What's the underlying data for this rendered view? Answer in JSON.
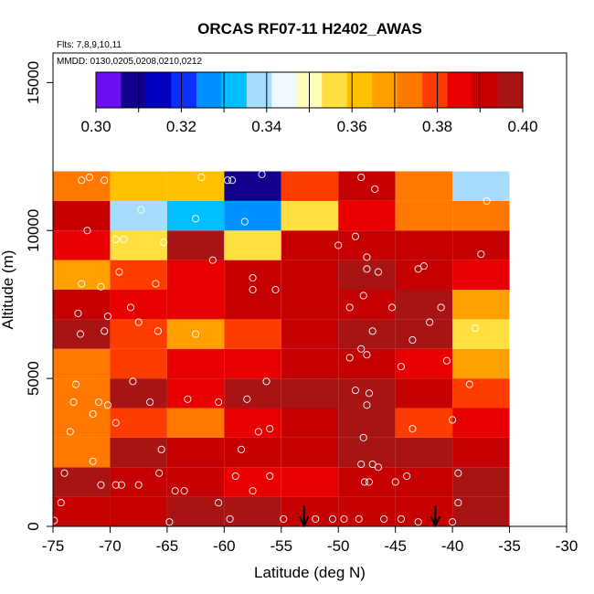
{
  "chart_data": {
    "type": "heatmap",
    "title": "ORCAS RF07-11 H2402_AWAS",
    "subtitle_flights": "Flts: 7,8,9,10,11",
    "subtitle_dates": "MMDD: 0130,0205,0208,0210,0212",
    "xlabel": "Latitude (deg N)",
    "ylabel": "Altitude (m)",
    "xlim": [
      -75,
      -30
    ],
    "ylim": [
      0,
      16000
    ],
    "x_ticks": [
      -75,
      -70,
      -65,
      -60,
      -55,
      -50,
      -45,
      -40,
      -35,
      -30
    ],
    "y_ticks": [
      0,
      5000,
      10000,
      15000
    ],
    "colorbar": {
      "min": 0.3,
      "max": 0.4,
      "ticks": [
        "0.30",
        "0.32",
        "0.34",
        "0.36",
        "0.38",
        "0.40"
      ],
      "colors": [
        "#6a10f0",
        "#10008c",
        "#0000c0",
        "#0a30ff",
        "#0090ff",
        "#00beff",
        "#a8dcff",
        "#f0f8ff",
        "#ffffb8",
        "#ffe040",
        "#ffc000",
        "#ffa000",
        "#ff7800",
        "#ff3c00",
        "#e80000",
        "#c40000",
        "#a81414"
      ]
    },
    "lat_bins": [
      [
        -75,
        -70
      ],
      [
        -70,
        -65
      ],
      [
        -65,
        -60
      ],
      [
        -60,
        -55
      ],
      [
        -55,
        -50
      ],
      [
        -50,
        -45
      ],
      [
        -45,
        -40
      ],
      [
        -40,
        -35
      ]
    ],
    "alt_bins": [
      [
        0,
        1000
      ],
      [
        1000,
        2000
      ],
      [
        2000,
        3000
      ],
      [
        3000,
        4000
      ],
      [
        4000,
        5000
      ],
      [
        5000,
        6000
      ],
      [
        6000,
        7000
      ],
      [
        7000,
        8000
      ],
      [
        8000,
        9000
      ],
      [
        9000,
        10000
      ],
      [
        10000,
        11000
      ],
      [
        11000,
        12000
      ]
    ],
    "cell_values": [
      [
        0.39,
        0.392,
        0.398,
        0.395,
        0.394,
        0.39,
        0.391,
        0.398
      ],
      [
        0.396,
        0.391,
        0.391,
        0.386,
        0.388,
        0.391,
        0.391,
        0.397
      ],
      [
        0.373,
        0.398,
        0.39,
        0.39,
        0.394,
        0.397,
        0.396,
        0.392
      ],
      [
        0.373,
        0.378,
        0.376,
        0.384,
        0.39,
        0.397,
        0.377,
        0.388
      ],
      [
        0.373,
        0.398,
        0.386,
        0.396,
        0.397,
        0.398,
        0.39,
        0.38
      ],
      [
        0.373,
        0.38,
        0.384,
        0.384,
        0.393,
        0.39,
        0.388,
        0.369
      ],
      [
        0.396,
        0.378,
        0.369,
        0.382,
        0.394,
        0.397,
        0.396,
        0.354
      ],
      [
        0.392,
        0.384,
        0.386,
        0.392,
        0.391,
        0.39,
        0.397,
        0.369
      ],
      [
        0.369,
        0.378,
        0.383,
        0.389,
        0.389,
        0.396,
        0.39,
        0.383
      ],
      [
        0.384,
        0.354,
        0.398,
        0.354,
        0.39,
        0.39,
        0.391,
        0.39
      ],
      [
        0.39,
        0.337,
        0.334,
        0.326,
        0.354,
        0.388,
        0.374,
        0.371
      ],
      [
        0.373,
        0.362,
        0.359,
        0.307,
        0.382,
        0.39,
        0.375,
        0.341
      ]
    ],
    "sample_points": [
      [
        -74.9,
        200
      ],
      [
        -74.3,
        800
      ],
      [
        -74,
        1800
      ],
      [
        -73.5,
        3200
      ],
      [
        -73.2,
        4200
      ],
      [
        -73,
        4800
      ],
      [
        -72.6,
        6500
      ],
      [
        -72.8,
        7200
      ],
      [
        -72.5,
        8200
      ],
      [
        -72,
        10000
      ],
      [
        -71.8,
        11800
      ],
      [
        -72.5,
        11700
      ],
      [
        -71.5,
        3800
      ],
      [
        -71,
        4200
      ],
      [
        -70.2,
        4100
      ],
      [
        -70.8,
        1400
      ],
      [
        -71.5,
        2200
      ],
      [
        -70.5,
        6600
      ],
      [
        -70.2,
        7100
      ],
      [
        -70.8,
        8100
      ],
      [
        -70.5,
        11700
      ],
      [
        -69.5,
        1400
      ],
      [
        -69,
        1400
      ],
      [
        -67.5,
        1400
      ],
      [
        -69.5,
        3500
      ],
      [
        -68,
        4900
      ],
      [
        -67.5,
        6900
      ],
      [
        -68.2,
        7400
      ],
      [
        -69.2,
        8600
      ],
      [
        -69.5,
        9700
      ],
      [
        -68.8,
        9700
      ],
      [
        -67.3,
        10700
      ],
      [
        -66.5,
        4200
      ],
      [
        -65.5,
        2600
      ],
      [
        -66,
        8200
      ],
      [
        -65.8,
        6600
      ],
      [
        -65.3,
        9600
      ],
      [
        -65.7,
        1800
      ],
      [
        -64.8,
        150
      ],
      [
        -64.3,
        1200
      ],
      [
        -63.5,
        1200
      ],
      [
        -63.2,
        4300
      ],
      [
        -62.5,
        6500
      ],
      [
        -62,
        11800
      ],
      [
        -62.5,
        10400
      ],
      [
        -61,
        9000
      ],
      [
        -60.5,
        4200
      ],
      [
        -60.5,
        800
      ],
      [
        -59.5,
        250
      ],
      [
        -59,
        1700
      ],
      [
        -58.5,
        2600
      ],
      [
        -58,
        4300
      ],
      [
        -57.5,
        8000
      ],
      [
        -57.5,
        8400
      ],
      [
        -58.2,
        10300
      ],
      [
        -59.7,
        11700
      ],
      [
        -59.3,
        11700
      ],
      [
        -57.5,
        1200
      ],
      [
        -57,
        3200
      ],
      [
        -56.3,
        4900
      ],
      [
        -56,
        3300
      ],
      [
        -56,
        1700
      ],
      [
        -56.7,
        11900
      ],
      [
        -55.5,
        8000
      ],
      [
        -49.5,
        250
      ],
      [
        -48.2,
        250
      ],
      [
        -47.7,
        1500
      ],
      [
        -47.3,
        1500
      ],
      [
        -47,
        2100
      ],
      [
        -48,
        2100
      ],
      [
        -46.5,
        2000
      ],
      [
        -47.8,
        3000
      ],
      [
        -47.5,
        4100
      ],
      [
        -48.5,
        4600
      ],
      [
        -47.3,
        4500
      ],
      [
        -49,
        5700
      ],
      [
        -47.5,
        5800
      ],
      [
        -48,
        6000
      ],
      [
        -47,
        6600
      ],
      [
        -45.3,
        7400
      ],
      [
        -47.8,
        7800
      ],
      [
        -49,
        7400
      ],
      [
        -47.5,
        8700
      ],
      [
        -46.5,
        8600
      ],
      [
        -47.5,
        9100
      ],
      [
        -48.5,
        9800
      ],
      [
        -50,
        9500
      ],
      [
        -48,
        11800
      ],
      [
        -46.8,
        11400
      ],
      [
        -45,
        1500
      ],
      [
        -44,
        1700
      ],
      [
        -44.5,
        5400
      ],
      [
        -43.5,
        3300
      ],
      [
        -43.5,
        6300
      ],
      [
        -43,
        8700
      ],
      [
        -42.5,
        8800
      ],
      [
        -42,
        6900
      ],
      [
        -41,
        7400
      ],
      [
        -40.5,
        5600
      ],
      [
        -40,
        3600
      ],
      [
        -39.5,
        1800
      ],
      [
        -39.5,
        800
      ],
      [
        -38.5,
        4800
      ],
      [
        -38,
        6700
      ],
      [
        -37.5,
        9200
      ],
      [
        -37,
        11000
      ],
      [
        -54.8,
        250
      ],
      [
        -52,
        250
      ],
      [
        -50.5,
        250
      ],
      [
        -46,
        250
      ],
      [
        -44.5,
        250
      ],
      [
        -43,
        150
      ],
      [
        -40,
        150
      ]
    ],
    "arrows": [
      {
        "latitude": -53
      },
      {
        "latitude": -41.5
      }
    ]
  }
}
